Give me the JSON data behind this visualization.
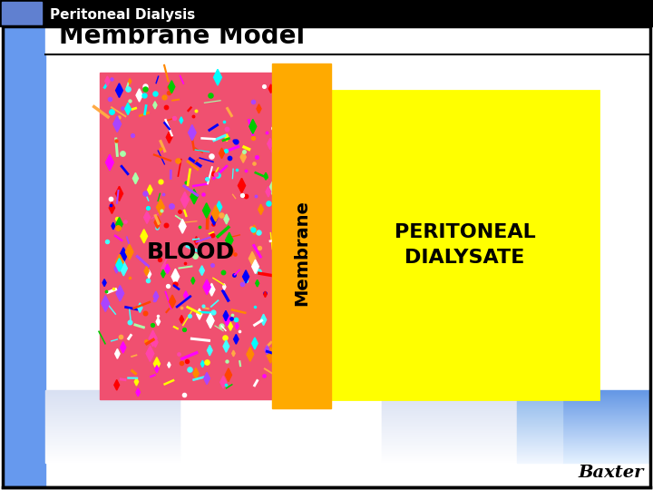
{
  "title_bar_color": "#000000",
  "title_bar_text": "Peritoneal Dialysis",
  "title_bar_icon_color": "#6080d0",
  "slide_bg": "#ffffff",
  "main_title": "Membrane Model",
  "main_title_fontsize": 20,
  "blood_color": "#f05070",
  "blood_label": "BLOOD",
  "membrane_color": "#ffaa00",
  "membrane_label": "Membrane",
  "dialysate_color": "#ffff00",
  "dialysate_label": "PERITONEAL\nDIALYSATE",
  "left_blue_bar_color": "#6699ee",
  "border_color": "#000000",
  "baxter_text": "Baxter",
  "confetti_colors": [
    "#ff0000",
    "#00cc00",
    "#0000ff",
    "#ffff00",
    "#ff00ff",
    "#00ffff",
    "#ffffff",
    "#ff8800",
    "#ff44aa",
    "#aaffaa",
    "#ff4400",
    "#44ffff",
    "#ffaa44",
    "#aa44ff"
  ]
}
